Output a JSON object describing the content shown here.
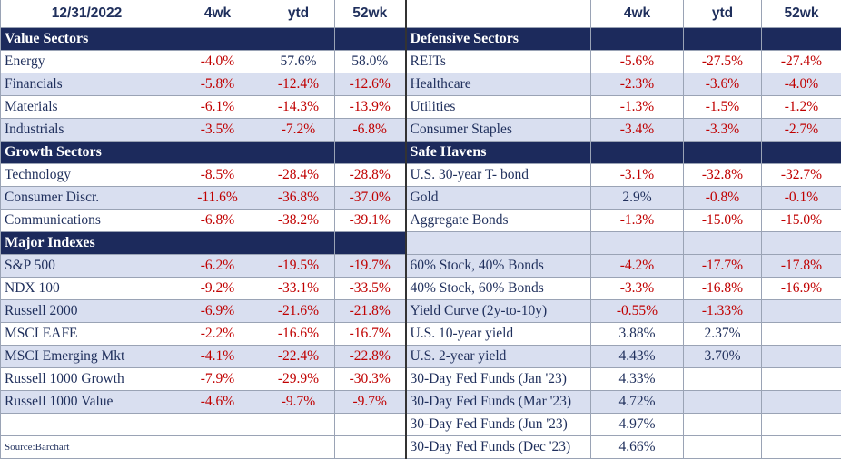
{
  "header": {
    "date": "12/31/2022",
    "col1": "4wk",
    "col2": "ytd",
    "col3": "52wk"
  },
  "sections": {
    "value": "Value Sectors",
    "defensive": "Defensive Sectors",
    "growth": "Growth Sectors",
    "safe": "Safe Havens",
    "indexes": "Major Indexes"
  },
  "rows": [
    {
      "l": [
        "Energy",
        "-4.0%",
        "57.6%",
        "58.0%"
      ],
      "r": [
        "REITs",
        "-5.6%",
        "-27.5%",
        "-27.4%"
      ]
    },
    {
      "l": [
        "Financials",
        "-5.8%",
        "-12.4%",
        "-12.6%"
      ],
      "r": [
        "Healthcare",
        "-2.3%",
        "-3.6%",
        "-4.0%"
      ]
    },
    {
      "l": [
        "Materials",
        "-6.1%",
        "-14.3%",
        "-13.9%"
      ],
      "r": [
        "Utilities",
        "-1.3%",
        "-1.5%",
        "-1.2%"
      ]
    },
    {
      "l": [
        "Industrials",
        "-3.5%",
        "-7.2%",
        "-6.8%"
      ],
      "r": [
        "Consumer Staples",
        "-3.4%",
        "-3.3%",
        "-2.7%"
      ]
    },
    {
      "l": [
        "Technology",
        "-8.5%",
        "-28.4%",
        "-28.8%"
      ],
      "r": [
        "U.S. 30-year T- bond",
        "-3.1%",
        "-32.8%",
        "-32.7%"
      ]
    },
    {
      "l": [
        "Consumer Discr.",
        "-11.6%",
        "-36.8%",
        "-37.0%"
      ],
      "r": [
        "Gold",
        "2.9%",
        "-0.8%",
        "-0.1%"
      ]
    },
    {
      "l": [
        "Communications",
        "-6.8%",
        "-38.2%",
        "-39.1%"
      ],
      "r": [
        "Aggregate Bonds",
        "-1.3%",
        "-15.0%",
        "-15.0%"
      ]
    },
    {
      "l": [
        "S&P 500",
        "-6.2%",
        "-19.5%",
        "-19.7%"
      ],
      "r": [
        "60% Stock, 40% Bonds",
        "-4.2%",
        "-17.7%",
        "-17.8%"
      ]
    },
    {
      "l": [
        "NDX 100",
        "-9.2%",
        "-33.1%",
        "-33.5%"
      ],
      "r": [
        "40% Stock, 60% Bonds",
        "-3.3%",
        "-16.8%",
        "-16.9%"
      ]
    },
    {
      "l": [
        "Russell 2000",
        "-6.9%",
        "-21.6%",
        "-21.8%"
      ],
      "r": [
        "Yield Curve (2y-to-10y)",
        "-0.55%",
        "-1.33%",
        ""
      ]
    },
    {
      "l": [
        "MSCI EAFE",
        "-2.2%",
        "-16.6%",
        "-16.7%"
      ],
      "r": [
        "U.S. 10-year yield",
        "3.88%",
        "2.37%",
        ""
      ]
    },
    {
      "l": [
        "MSCI Emerging Mkt",
        "-4.1%",
        "-22.4%",
        "-22.8%"
      ],
      "r": [
        "U.S. 2-year yield",
        "4.43%",
        "3.70%",
        ""
      ]
    },
    {
      "l": [
        "Russell 1000 Growth",
        "-7.9%",
        "-29.9%",
        "-30.3%"
      ],
      "r": [
        "30-Day Fed Funds (Jan '23)",
        "4.33%",
        "",
        ""
      ]
    },
    {
      "l": [
        "Russell 1000 Value",
        "-4.6%",
        "-9.7%",
        "-9.7%"
      ],
      "r": [
        "30-Day Fed Funds (Mar '23)",
        "4.72%",
        "",
        ""
      ]
    },
    {
      "l": [
        "",
        "",
        "",
        ""
      ],
      "r": [
        "30-Day Fed Funds (Jun '23)",
        "4.97%",
        "",
        ""
      ]
    },
    {
      "l": [
        "Source:Barchart",
        "",
        "",
        ""
      ],
      "r": [
        "30-Day Fed Funds (Dec '23)",
        "4.66%",
        "",
        ""
      ]
    }
  ]
}
